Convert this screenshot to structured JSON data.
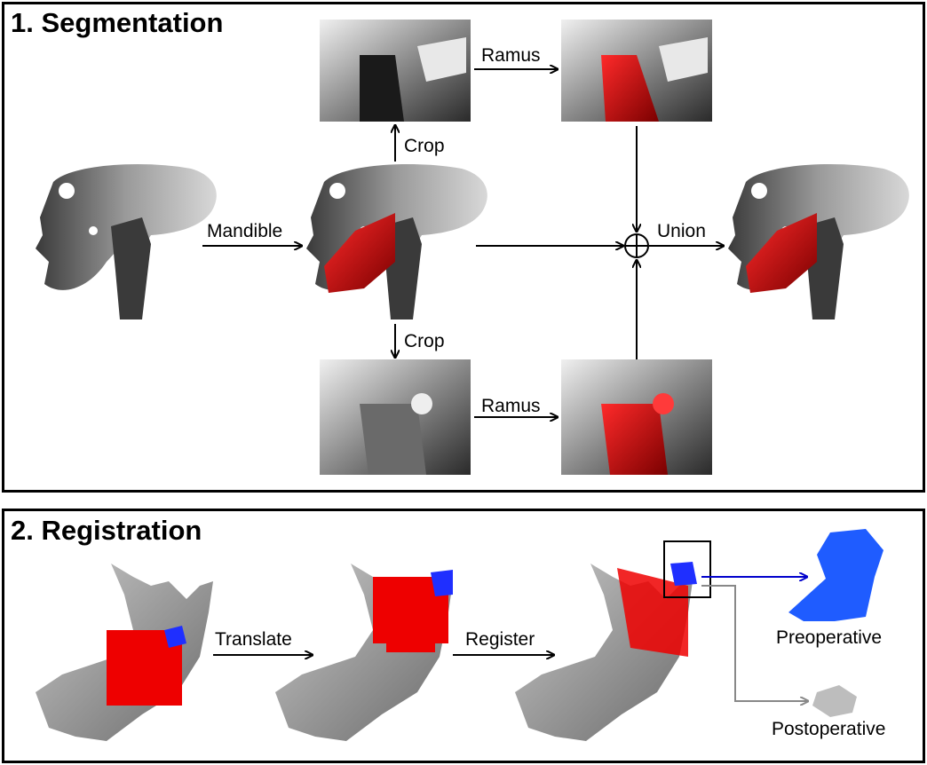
{
  "panels": {
    "segmentation": {
      "title": "1. Segmentation",
      "labels": {
        "mandible": "Mandible",
        "crop_top": "Crop",
        "crop_bottom": "Crop",
        "ramus_top": "Ramus",
        "ramus_bottom": "Ramus",
        "union": "Union"
      }
    },
    "registration": {
      "title": "2. Registration",
      "labels": {
        "translate": "Translate",
        "register": "Register",
        "preoperative": "Preoperative",
        "postoperative": "Postoperative"
      }
    }
  },
  "colors": {
    "segment_red": "#d40000",
    "preop_blue": "#1f5cff",
    "postop_gray": "#bdbdbd",
    "arrow_blue": "#0000cc",
    "arrow_gray": "#888888",
    "border": "#000000"
  }
}
